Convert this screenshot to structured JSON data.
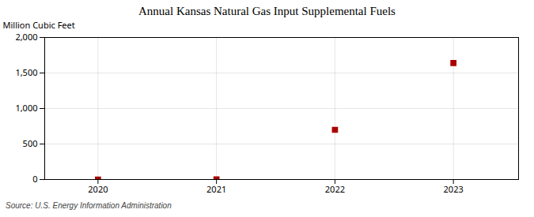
{
  "chart_data": {
    "type": "scatter",
    "title": "Annual Kansas Natural Gas Input Supplemental Fuels",
    "ylabel": "Million Cubic Feet",
    "source": "Source: U.S. Energy Information Administration",
    "x": [
      2020,
      2021,
      2022,
      2023
    ],
    "values": [
      0,
      3,
      700,
      1640
    ],
    "color": "#aa0000",
    "marker": "square",
    "xlim": [
      2019.55,
      2023.55
    ],
    "xticks": [
      2020,
      2021,
      2022,
      2023
    ],
    "ylim": [
      0,
      2000
    ],
    "yticks": [
      0,
      500,
      {
        "value": 1000,
        "label": "1,000"
      },
      {
        "value": 1500,
        "label": "1,500"
      },
      {
        "value": 2000,
        "label": "2,000"
      }
    ],
    "grid": true
  }
}
